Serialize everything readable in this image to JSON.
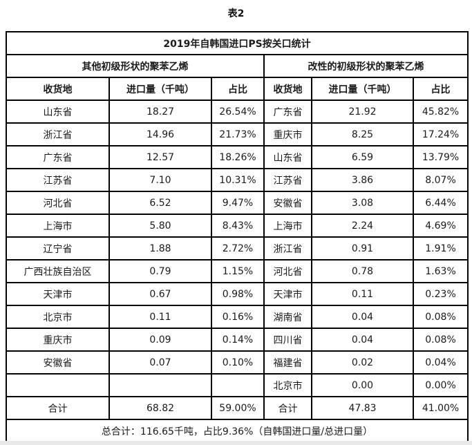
{
  "caption": "表2",
  "table": {
    "title": "2019年自韩国进口PS按关口统计",
    "sections": [
      "其他初级形状的聚苯乙烯",
      "改性的初级形状的聚苯乙烯"
    ],
    "columns": [
      "收货地",
      "进口量（千吨）",
      "占比"
    ],
    "rows": [
      {
        "left": {
          "region": "山东省",
          "volume": "18.27",
          "share": "26.54%"
        },
        "right": {
          "region": "广东省",
          "volume": "21.92",
          "share": "45.82%"
        }
      },
      {
        "left": {
          "region": "浙江省",
          "volume": "14.96",
          "share": "21.73%"
        },
        "right": {
          "region": "重庆市",
          "volume": "8.25",
          "share": "17.24%"
        }
      },
      {
        "left": {
          "region": "广东省",
          "volume": "12.57",
          "share": "18.26%"
        },
        "right": {
          "region": "山东省",
          "volume": "6.59",
          "share": "13.79%"
        }
      },
      {
        "left": {
          "region": "江苏省",
          "volume": "7.10",
          "share": "10.31%"
        },
        "right": {
          "region": "江苏省",
          "volume": "3.86",
          "share": "8.07%"
        }
      },
      {
        "left": {
          "region": "河北省",
          "volume": "6.52",
          "share": "9.47%"
        },
        "right": {
          "region": "安徽省",
          "volume": "3.08",
          "share": "6.44%"
        }
      },
      {
        "left": {
          "region": "上海市",
          "volume": "5.80",
          "share": "8.43%"
        },
        "right": {
          "region": "上海市",
          "volume": "2.24",
          "share": "4.69%"
        }
      },
      {
        "left": {
          "region": "辽宁省",
          "volume": "1.88",
          "share": "2.72%"
        },
        "right": {
          "region": "浙江省",
          "volume": "0.91",
          "share": "1.91%"
        }
      },
      {
        "left": {
          "region": "广西壮族自治区",
          "volume": "0.79",
          "share": "1.15%"
        },
        "right": {
          "region": "河北省",
          "volume": "0.78",
          "share": "1.63%"
        }
      },
      {
        "left": {
          "region": "天津市",
          "volume": "0.67",
          "share": "0.98%"
        },
        "right": {
          "region": "天津市",
          "volume": "0.11",
          "share": "0.23%"
        }
      },
      {
        "left": {
          "region": "北京市",
          "volume": "0.11",
          "share": "0.16%"
        },
        "right": {
          "region": "湖南省",
          "volume": "0.04",
          "share": "0.08%"
        }
      },
      {
        "left": {
          "region": "重庆市",
          "volume": "0.09",
          "share": "0.14%"
        },
        "right": {
          "region": "四川省",
          "volume": "0.04",
          "share": "0.08%"
        }
      },
      {
        "left": {
          "region": "安徽省",
          "volume": "0.07",
          "share": "0.10%"
        },
        "right": {
          "region": "福建省",
          "volume": "0.02",
          "share": "0.04%"
        }
      },
      {
        "left": {
          "region": "",
          "volume": "",
          "share": ""
        },
        "right": {
          "region": "北京市",
          "volume": "0.00",
          "share": "0.00%"
        }
      }
    ],
    "total": {
      "left": {
        "label": "合计",
        "volume": "68.82",
        "share": "59.00%"
      },
      "right": {
        "label": "合计",
        "volume": "47.83",
        "share": "41.00%"
      }
    },
    "grand_total": "总合计：116.65千吨，占比9.36%（自韩国进口量/总进口量）"
  }
}
